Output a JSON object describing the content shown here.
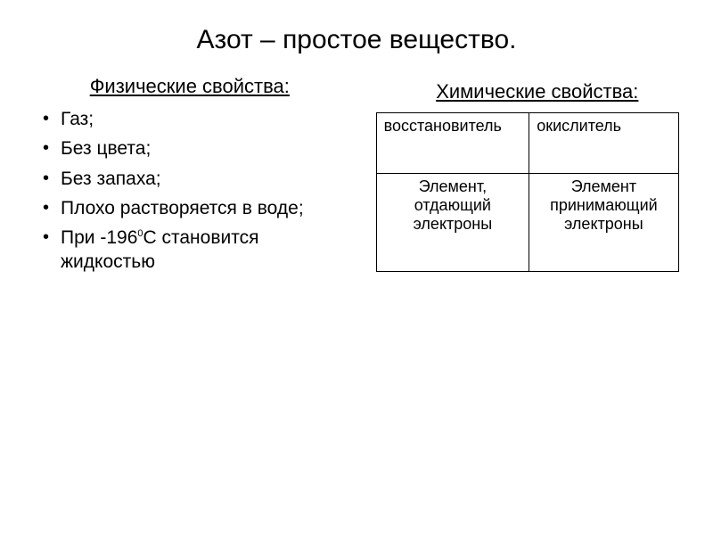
{
  "title": "Азот – простое вещество.",
  "left": {
    "heading": "Физические свойства:",
    "items": [
      "Газ;",
      "Без цвета;",
      "Без запаха;",
      "Плохо растворяется в воде;",
      "При -196",
      "С становится жидкостью"
    ],
    "superscript": "0"
  },
  "right": {
    "heading": "Химические свойства:",
    "table": {
      "header": [
        "восстановитель",
        "окислитель"
      ],
      "row": [
        "Элемент, отдающий электроны",
        "Элемент принимающий электроны"
      ]
    }
  },
  "style": {
    "background_color": "#ffffff",
    "text_color": "#000000",
    "border_color": "#000000",
    "title_fontsize": 30,
    "subhead_fontsize": 22,
    "body_fontsize": 21,
    "table_fontsize": 18
  }
}
